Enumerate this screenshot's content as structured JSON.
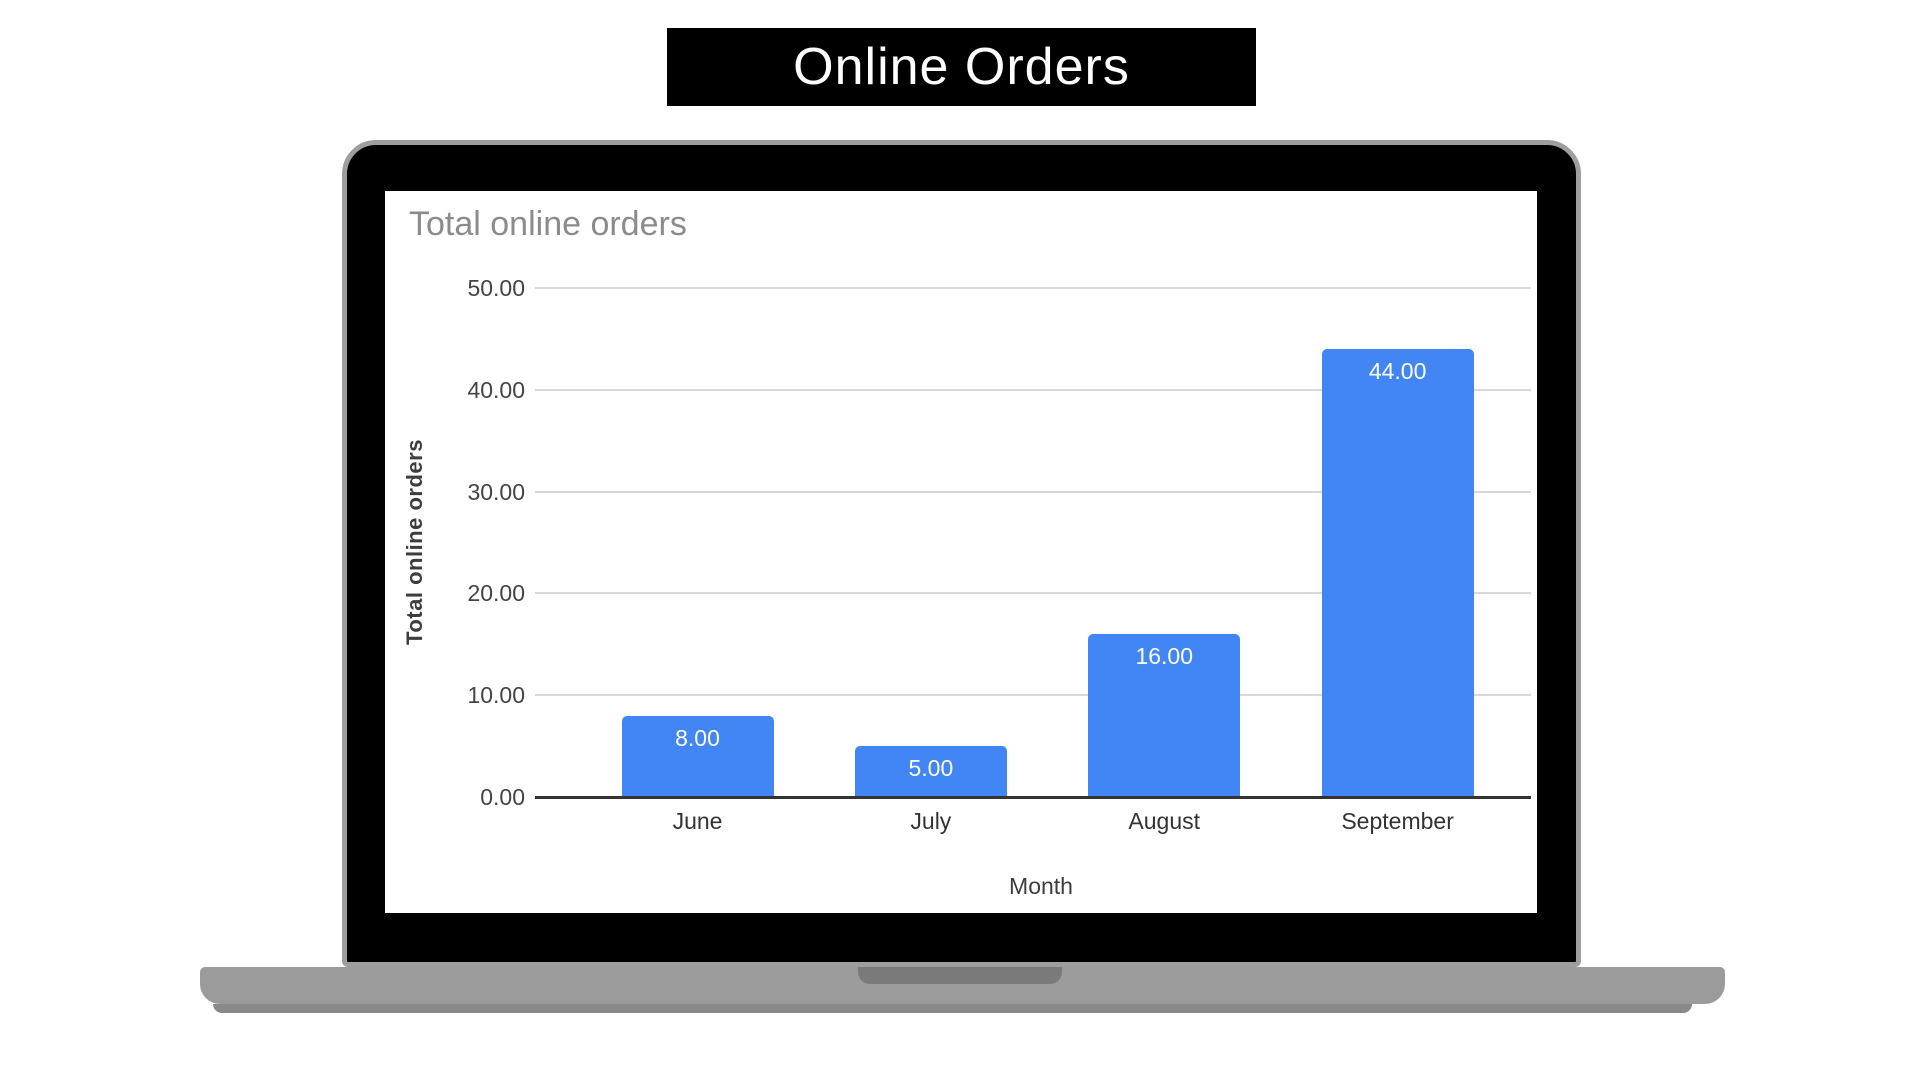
{
  "banner": {
    "title": "Online Orders",
    "bg_color": "#000000",
    "text_color": "#ffffff"
  },
  "laptop": {
    "bezel_color": "#000000",
    "bezel_border_color": "#9e9e9e",
    "screen_bg_color": "#ffffff",
    "base_color": "#9b9b9b",
    "hinge_notch_color": "#7a7a7a",
    "base_lip_color": "#898989"
  },
  "chart_data": {
    "type": "bar",
    "title": "Total online orders",
    "categories": [
      "June",
      "July",
      "August",
      "September"
    ],
    "values": [
      8,
      5,
      16,
      44
    ],
    "value_labels": [
      "8.00",
      "5.00",
      "16.00",
      "44.00"
    ],
    "xlabel": "Month",
    "ylabel": "Total online orders",
    "ylim": [
      0,
      50
    ],
    "ytick_step": 10,
    "ytick_labels": [
      "0.00",
      "10.00",
      "20.00",
      "30.00",
      "40.00",
      "50.00"
    ],
    "grid": true,
    "legend": "none",
    "bar_color": "#4285f4",
    "value_label_color": "#ffffff",
    "title_color": "#8b8b8b",
    "gridline_color": "#d9d9d9",
    "axis_line_color": "#333333",
    "tick_label_color": "#444444",
    "axis_title_color": "#3d3d3d"
  }
}
